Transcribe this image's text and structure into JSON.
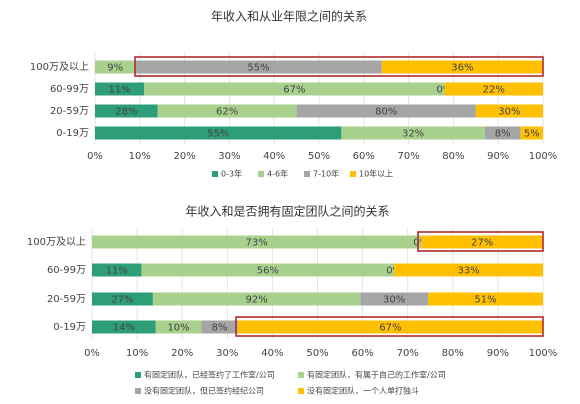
{
  "chart_data": [
    {
      "type": "bar",
      "orientation": "horizontal",
      "stacked": true,
      "normalize": true,
      "title": "年收入和从业年限之间的关系",
      "categories": [
        "100万及以上",
        "60-99万",
        "20-59万",
        "0-19万"
      ],
      "series": [
        {
          "name": "0-3年",
          "color": "#2e9e78",
          "values": [
            0,
            11,
            28,
            55
          ],
          "value_labels": [
            "0%",
            "11%",
            "28%",
            "55%"
          ]
        },
        {
          "name": "4-6年",
          "color": "#a9d18e",
          "values": [
            9,
            67,
            62,
            32
          ],
          "value_labels": [
            "9%",
            "67%",
            "62%",
            "32%"
          ]
        },
        {
          "name": "7-10年",
          "color": "#a5a5a5",
          "values": [
            55,
            0,
            80,
            8
          ],
          "value_labels": [
            "55%",
            "0%",
            "80%",
            "8%"
          ]
        },
        {
          "name": "10年以上",
          "color": "#ffc000",
          "values": [
            36,
            22,
            30,
            5
          ],
          "value_labels": [
            "36%",
            "22%",
            "30%",
            "5%"
          ]
        }
      ],
      "xlim": [
        0,
        100
      ],
      "xticks": [
        {
          "value": 0,
          "label": "0%"
        },
        {
          "value": 10,
          "label": "10%"
        },
        {
          "value": 20,
          "label": "20%"
        },
        {
          "value": 30,
          "label": "30%"
        },
        {
          "value": 40,
          "label": "40%"
        },
        {
          "value": 50,
          "label": "50%"
        },
        {
          "value": 60,
          "label": "60%"
        },
        {
          "value": 70,
          "label": "70%"
        },
        {
          "value": 80,
          "label": "80%"
        },
        {
          "value": 90,
          "label": "90%"
        },
        {
          "value": 100,
          "label": "100%"
        }
      ],
      "grid": true,
      "legend": "bottom"
    },
    {
      "type": "bar",
      "orientation": "horizontal",
      "stacked": true,
      "normalize": true,
      "title": "年收入和是否拥有固定团队之间的关系",
      "categories": [
        "100万及以上",
        "60-99万",
        "20-59万",
        "0-19万"
      ],
      "series": [
        {
          "name": "有固定团队，已经签约了工作室/公司",
          "color": "#2e9e78",
          "values": [
            0,
            11,
            27,
            14
          ],
          "value_labels": [
            "0%",
            "11%",
            "27%",
            "14%"
          ]
        },
        {
          "name": "有固定团队，有属于自己的工作室/公司",
          "color": "#a9d18e",
          "values": [
            73,
            56,
            92,
            10
          ],
          "value_labels": [
            "73%",
            "56%",
            "92%",
            "10%"
          ]
        },
        {
          "name": "没有固定团队，但已签约经纪公司",
          "color": "#a5a5a5",
          "values": [
            0,
            0,
            30,
            8
          ],
          "value_labels": [
            "0%",
            "0%",
            "30%",
            "8%"
          ]
        },
        {
          "name": "没有固定团队，一个人单打独斗",
          "color": "#ffc000",
          "values": [
            27,
            33,
            51,
            67
          ],
          "value_labels": [
            "27%",
            "33%",
            "51%",
            "67%"
          ]
        }
      ],
      "xlim": [
        0,
        100
      ],
      "xticks": [
        {
          "value": 0,
          "label": "0%"
        },
        {
          "value": 10,
          "label": "10%"
        },
        {
          "value": 20,
          "label": "20%"
        },
        {
          "value": 30,
          "label": "30%"
        },
        {
          "value": 40,
          "label": "40%"
        },
        {
          "value": 50,
          "label": "50%"
        },
        {
          "value": 60,
          "label": "60%"
        },
        {
          "value": 70,
          "label": "70%"
        },
        {
          "value": 80,
          "label": "80%"
        },
        {
          "value": 90,
          "label": "90%"
        },
        {
          "value": 100,
          "label": "100%"
        }
      ],
      "grid": true,
      "legend": "bottom"
    }
  ]
}
